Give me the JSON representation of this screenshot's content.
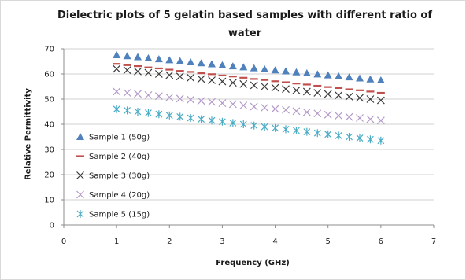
{
  "chart_data": {
    "type": "scatter",
    "title_line1": "Dielectric plots of 5 gelatin based samples with different ratio of",
    "title_line2": "water",
    "title": "Dielectric plots of 5 gelatin based samples with different ratio of water",
    "xlabel": "Frequency (GHz)",
    "ylabel": "Relative Permittivity",
    "xlim": [
      0,
      7
    ],
    "ylim": [
      0,
      70
    ],
    "xticks": [
      "0",
      "1",
      "2",
      "3",
      "4",
      "5",
      "6",
      "7"
    ],
    "yticks": [
      "0",
      "10",
      "20",
      "30",
      "40",
      "50",
      "60",
      "70"
    ],
    "grid": "horizontal",
    "legend_position": "left-inside",
    "x": [
      1.0,
      1.2,
      1.4,
      1.6,
      1.8,
      2.0,
      2.2,
      2.4,
      2.6,
      2.8,
      3.0,
      3.2,
      3.4,
      3.6,
      3.8,
      4.0,
      4.2,
      4.4,
      4.6,
      4.8,
      5.0,
      5.2,
      5.4,
      5.6,
      5.8,
      6.0
    ],
    "series": [
      {
        "name": "Sample 1 (50g)",
        "marker": "triangle",
        "color": "#4f81bd",
        "values": [
          67.5,
          67.1,
          66.7,
          66.3,
          65.9,
          65.5,
          65.1,
          64.7,
          64.3,
          63.9,
          63.5,
          63.1,
          62.7,
          62.3,
          61.9,
          61.5,
          61.1,
          60.7,
          60.3,
          59.9,
          59.5,
          59.1,
          58.7,
          58.3,
          57.9,
          57.5
        ]
      },
      {
        "name": "Sample 2 (40g)",
        "marker": "dash",
        "color": "#c0504d",
        "values": [
          64.0,
          63.5,
          63.1,
          62.6,
          62.2,
          61.7,
          61.2,
          60.8,
          60.3,
          59.9,
          59.4,
          59.0,
          58.5,
          58.0,
          57.6,
          57.1,
          56.7,
          56.2,
          55.8,
          55.3,
          54.8,
          54.4,
          53.9,
          53.5,
          53.0,
          52.5
        ]
      },
      {
        "name": "Sample 3 (30g)",
        "marker": "x",
        "color": "#3a3a3a",
        "values": [
          62.0,
          61.5,
          61.0,
          60.5,
          60.0,
          59.5,
          59.0,
          58.5,
          58.0,
          57.5,
          57.0,
          56.5,
          56.0,
          55.5,
          55.0,
          54.5,
          54.0,
          53.5,
          53.0,
          52.5,
          52.0,
          51.5,
          51.0,
          50.5,
          50.0,
          49.5
        ]
      },
      {
        "name": "Sample 4 (20g)",
        "marker": "x",
        "color": "#b298c8",
        "values": [
          53.0,
          52.5,
          52.1,
          51.6,
          51.2,
          50.7,
          50.2,
          49.8,
          49.3,
          48.9,
          48.4,
          48.0,
          47.5,
          47.0,
          46.6,
          46.1,
          45.7,
          45.2,
          44.8,
          44.3,
          43.8,
          43.4,
          42.9,
          42.5,
          42.0,
          41.5
        ]
      },
      {
        "name": "Sample 5 (15g)",
        "marker": "asterisk",
        "color": "#4bacc6",
        "values": [
          46.0,
          45.5,
          45.0,
          44.5,
          44.0,
          43.5,
          43.0,
          42.5,
          42.0,
          41.5,
          41.0,
          40.5,
          40.0,
          39.5,
          39.0,
          38.5,
          38.0,
          37.5,
          37.0,
          36.5,
          36.0,
          35.5,
          35.0,
          34.5,
          34.0,
          33.5
        ]
      }
    ]
  }
}
